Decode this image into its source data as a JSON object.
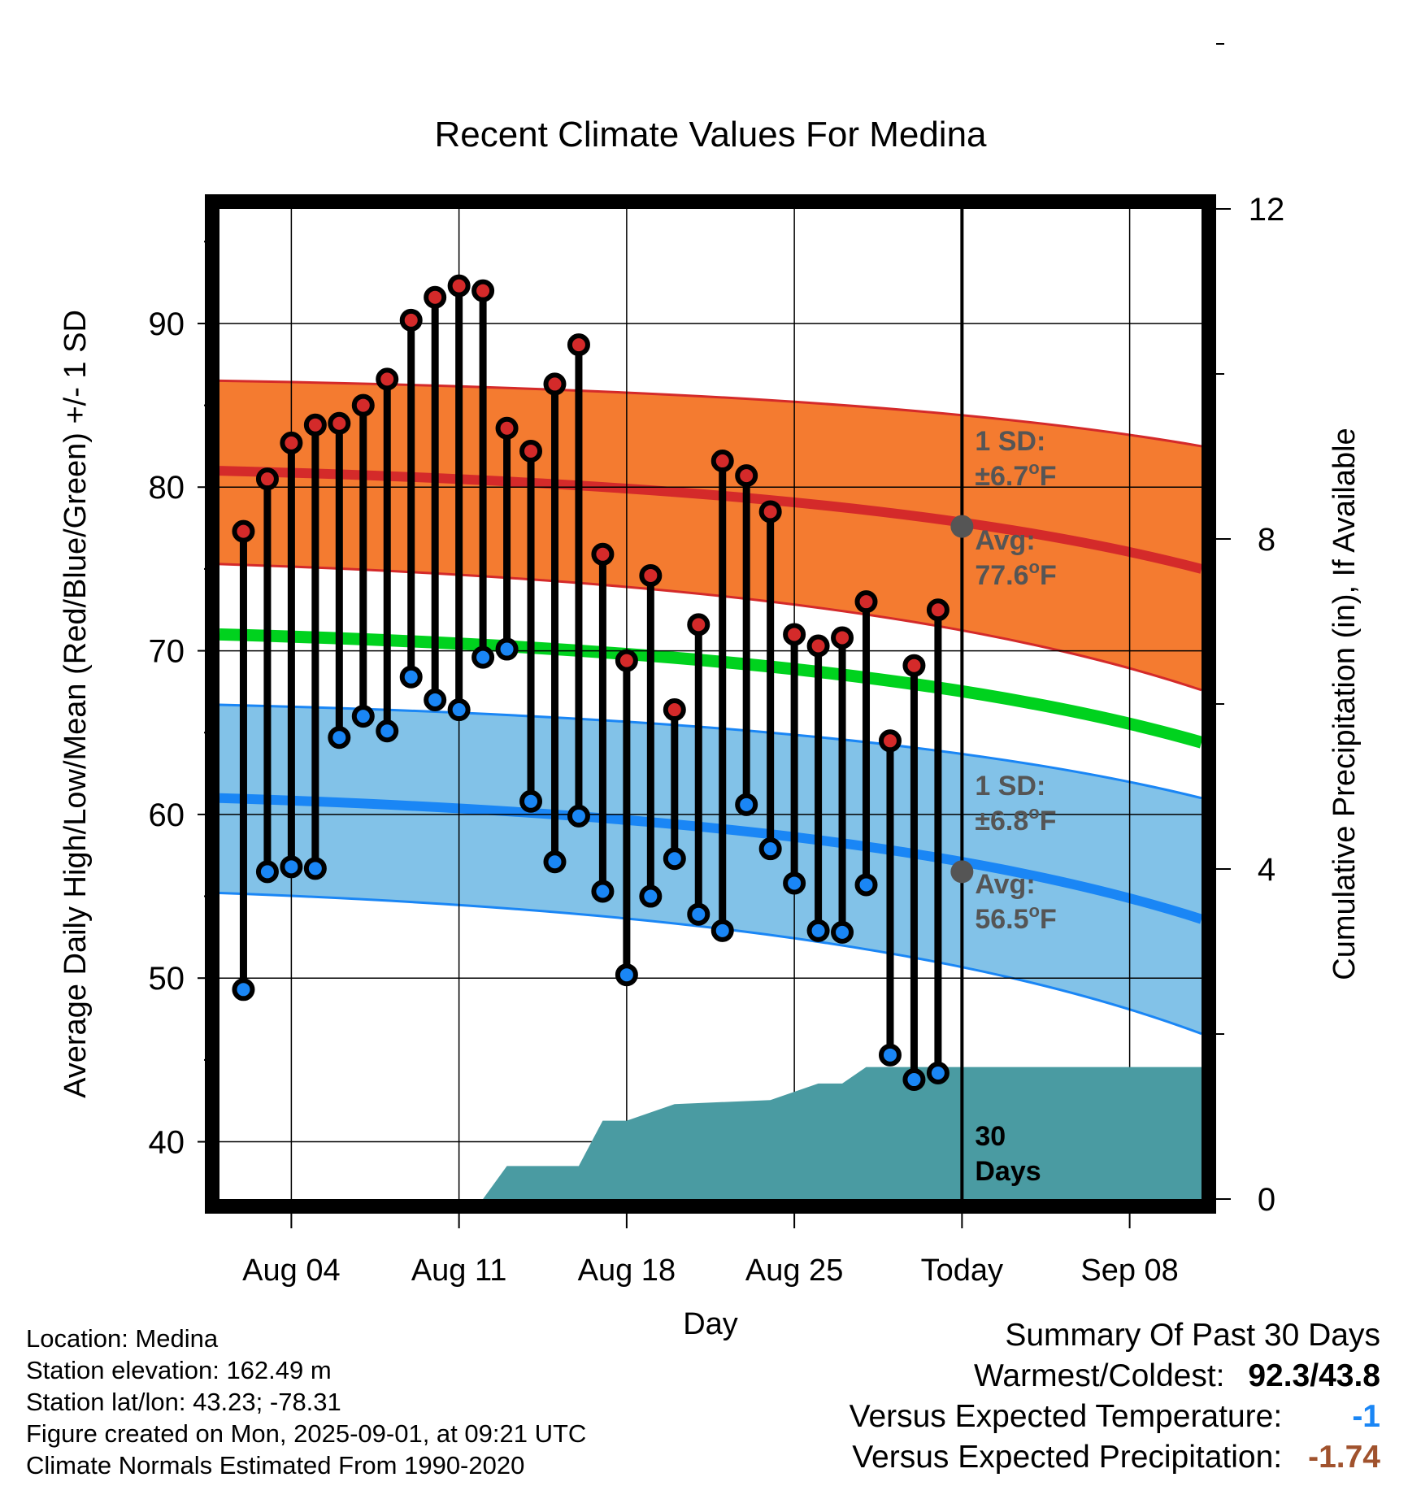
{
  "chart_data": {
    "type": "line",
    "title": "Recent Climate Values For Medina",
    "xlabel": "Day",
    "ylabel": "Average Daily High/Low/Mean (Red/Blue/Green) +/- 1 SD",
    "y2label": "Cumulative Precipitation (in), If Available",
    "x_range": [
      "2025-08-01",
      "2025-09-11"
    ],
    "ylim": [
      36.5,
      97
    ],
    "y2lim": [
      0,
      12
    ],
    "x_ticks": [
      {
        "date": "2025-08-04",
        "label": "Aug 04"
      },
      {
        "date": "2025-08-11",
        "label": "Aug 11"
      },
      {
        "date": "2025-08-18",
        "label": "Aug 18"
      },
      {
        "date": "2025-08-25",
        "label": "Aug 25"
      },
      {
        "date": "2025-09-01",
        "label": "Today"
      },
      {
        "date": "2025-09-08",
        "label": "Sep 08"
      }
    ],
    "y_ticks": [
      40,
      50,
      60,
      70,
      80,
      90
    ],
    "y2_ticks": [
      0,
      4,
      8,
      12
    ],
    "grid": true,
    "today": "2025-09-01",
    "normals": {
      "x": [
        "2025-08-01",
        "2025-09-11"
      ],
      "high_avg": [
        81.0,
        75.0
      ],
      "high_plus_sd": [
        86.5,
        82.5
      ],
      "high_minus_sd": [
        75.3,
        67.6
      ],
      "mean_avg": [
        71.0,
        64.4
      ],
      "low_avg": [
        61.0,
        53.6
      ],
      "low_plus_sd": [
        66.7,
        61.0
      ],
      "low_minus_sd": [
        55.2,
        46.6
      ]
    },
    "annotations": {
      "high_sd": {
        "line1": "1 SD:",
        "line2": "±6.7",
        "unit": "F"
      },
      "high_avg": {
        "line1": "Avg:",
        "line2": "77.6",
        "unit": "F",
        "value": 77.6
      },
      "low_sd": {
        "line1": "1 SD:",
        "line2": "±6.8",
        "unit": "F"
      },
      "low_avg": {
        "line1": "Avg:",
        "line2": "56.5",
        "unit": "F",
        "value": 56.5
      },
      "days": {
        "line1": "30",
        "line2": "Days"
      }
    },
    "series": [
      {
        "name": "High",
        "x": [
          "2025-08-02",
          "2025-08-03",
          "2025-08-04",
          "2025-08-05",
          "2025-08-06",
          "2025-08-07",
          "2025-08-08",
          "2025-08-09",
          "2025-08-10",
          "2025-08-11",
          "2025-08-12",
          "2025-08-13",
          "2025-08-14",
          "2025-08-15",
          "2025-08-16",
          "2025-08-17",
          "2025-08-18",
          "2025-08-19",
          "2025-08-20",
          "2025-08-21",
          "2025-08-22",
          "2025-08-23",
          "2025-08-24",
          "2025-08-25",
          "2025-08-26",
          "2025-08-27",
          "2025-08-28",
          "2025-08-29",
          "2025-08-30",
          "2025-08-31"
        ],
        "values": [
          77.3,
          80.5,
          82.7,
          83.8,
          83.9,
          85.0,
          86.6,
          90.2,
          91.6,
          92.3,
          92.0,
          83.6,
          82.2,
          86.3,
          88.7,
          75.9,
          69.4,
          74.6,
          66.4,
          71.6,
          81.6,
          80.7,
          78.5,
          71.0,
          70.3,
          70.8,
          73.0,
          64.5,
          69.1,
          72.5
        ]
      },
      {
        "name": "Low",
        "x": [
          "2025-08-02",
          "2025-08-03",
          "2025-08-04",
          "2025-08-05",
          "2025-08-06",
          "2025-08-07",
          "2025-08-08",
          "2025-08-09",
          "2025-08-10",
          "2025-08-11",
          "2025-08-12",
          "2025-08-13",
          "2025-08-14",
          "2025-08-15",
          "2025-08-16",
          "2025-08-17",
          "2025-08-18",
          "2025-08-19",
          "2025-08-20",
          "2025-08-21",
          "2025-08-22",
          "2025-08-23",
          "2025-08-24",
          "2025-08-25",
          "2025-08-26",
          "2025-08-27",
          "2025-08-28",
          "2025-08-29",
          "2025-08-30",
          "2025-08-31"
        ],
        "values": [
          49.3,
          56.5,
          56.8,
          56.7,
          64.7,
          66.0,
          65.1,
          68.4,
          67.0,
          66.4,
          69.6,
          70.1,
          60.8,
          57.1,
          59.9,
          55.3,
          50.2,
          55.0,
          57.3,
          53.9,
          52.9,
          60.6,
          57.9,
          55.8,
          52.9,
          52.8,
          55.7,
          45.3,
          43.8,
          44.2
        ]
      },
      {
        "name": "Cumulative Precipitation",
        "x": [
          "2025-08-12",
          "2025-08-13",
          "2025-08-16",
          "2025-08-17",
          "2025-08-18",
          "2025-08-20",
          "2025-08-24",
          "2025-08-26",
          "2025-08-27",
          "2025-08-28",
          "2025-09-01",
          "2025-09-11"
        ],
        "values": [
          0,
          0.4,
          0.4,
          0.95,
          0.95,
          1.15,
          1.2,
          1.4,
          1.4,
          1.6,
          1.6,
          1.6
        ]
      }
    ],
    "colors": {
      "high": "#d42a2a",
      "high_band": "#f47b30",
      "mean": "#00d21e",
      "low": "#1a86f5",
      "low_band": "#82c2e8",
      "precip": "#4a9ba2",
      "annotation": "#555555",
      "today_dot": "#555555"
    }
  },
  "footer": {
    "location": "Location: Medina",
    "elevation": "Station elevation: 162.49 m",
    "latlon": "Station lat/lon: 43.23; -78.31",
    "created": "Figure created on Mon, 2025-09-01, at 09:21 UTC",
    "normals": "Climate Normals Estimated From 1990-2020"
  },
  "summary": {
    "title": "Summary Of Past 30 Days",
    "warm_cold_label": "Warmest/Coldest:",
    "warm_cold_value": "92.3/43.8",
    "temp_label": "Versus Expected Temperature:",
    "temp_value": "-1",
    "temp_color": "#1a86f5",
    "precip_label": "Versus Expected Precipitation:",
    "precip_value": "-1.74",
    "precip_color": "#a0522d"
  }
}
